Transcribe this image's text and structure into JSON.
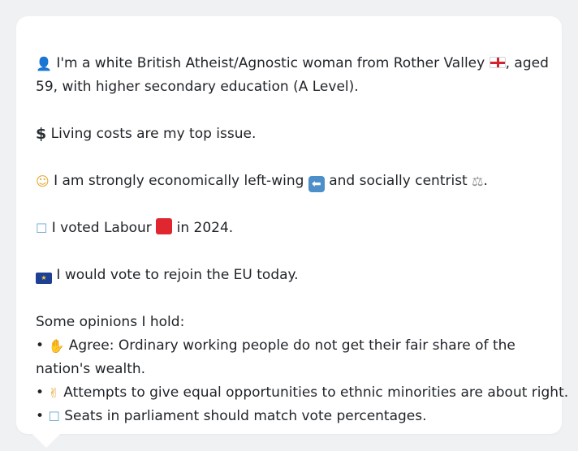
{
  "profile": {
    "line1_pre": "I'm a white British Atheist/Agnostic woman from Rother Valley ",
    "line1_post": ", aged",
    "line2": "59, with higher secondary education (A Level).",
    "icon_person": "person-icon",
    "icon_flag": "england-flag-icon"
  },
  "issue": {
    "text": "Living costs are my top issue.",
    "icon": "dollar-icon"
  },
  "politics": {
    "text_a": "I am strongly economically left-wing ",
    "text_b": " and socially centrist ",
    "text_c": ".",
    "icon_thinking": "thinking-face-icon",
    "icon_left": "left-arrow-icon",
    "icon_scales": "balance-scale-icon"
  },
  "vote": {
    "text_a": "I voted Labour ",
    "text_b": " in 2024.",
    "icon_ballot": "ballot-box-icon",
    "icon_party": "red-square-icon",
    "party_color": "#e0262f"
  },
  "eu": {
    "text": "I would vote to rejoin the EU today.",
    "icon": "eu-flag-icon"
  },
  "opinions": {
    "heading": "Some opinions I hold:",
    "bullet": "•",
    "items": [
      {
        "icon": "thumbs-up-icon",
        "line1": "Agree: Ordinary working people do not get their fair share of the",
        "line2": "nation's wealth."
      },
      {
        "icon": "handshake-icon",
        "line1": "Attempts to give equal opportunities to ethnic minorities are about right.",
        "line2": ""
      },
      {
        "icon": "ballot-box-icon",
        "line1": "Seats in parliament should match vote percentages.",
        "line2": ""
      }
    ]
  }
}
